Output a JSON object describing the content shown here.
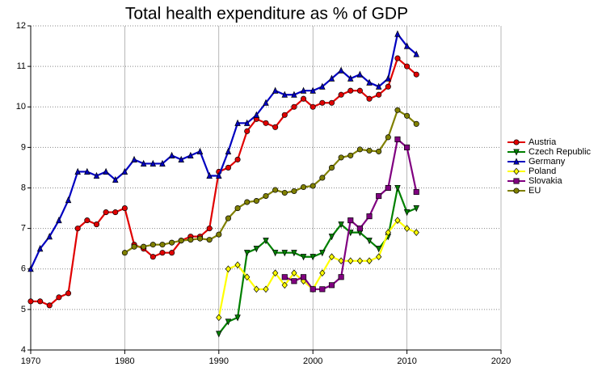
{
  "chart_data": {
    "type": "line",
    "title": "Total health expenditure as % of GDP",
    "x": [
      1970,
      1971,
      1972,
      1973,
      1974,
      1975,
      1976,
      1977,
      1978,
      1979,
      1980,
      1981,
      1982,
      1983,
      1984,
      1985,
      1986,
      1987,
      1988,
      1989,
      1990,
      1991,
      1992,
      1993,
      1994,
      1995,
      1996,
      1997,
      1998,
      1999,
      2000,
      2001,
      2002,
      2003,
      2004,
      2005,
      2006,
      2007,
      2008,
      2009,
      2010,
      2011
    ],
    "series": [
      {
        "name": "Austria",
        "color": "#e00000",
        "marker": "circle",
        "values": [
          5.2,
          5.2,
          5.1,
          5.3,
          5.4,
          7.0,
          7.2,
          7.1,
          7.4,
          7.4,
          7.5,
          6.6,
          6.5,
          6.3,
          6.4,
          6.4,
          6.7,
          6.8,
          6.8,
          7.0,
          8.4,
          8.5,
          8.7,
          9.4,
          9.7,
          9.6,
          9.5,
          9.8,
          10.0,
          10.2,
          10.0,
          10.1,
          10.1,
          10.3,
          10.4,
          10.4,
          10.2,
          10.3,
          10.5,
          11.2,
          11.0,
          10.8
        ]
      },
      {
        "name": "Czech Republic",
        "color": "#008000",
        "marker": "triangle-down",
        "values": [
          null,
          null,
          null,
          null,
          null,
          null,
          null,
          null,
          null,
          null,
          null,
          null,
          null,
          null,
          null,
          null,
          null,
          null,
          null,
          null,
          4.4,
          4.7,
          4.8,
          6.4,
          6.5,
          6.7,
          6.4,
          6.4,
          6.4,
          6.3,
          6.3,
          6.4,
          6.8,
          7.1,
          6.9,
          6.9,
          6.7,
          6.5,
          6.8,
          8.0,
          7.4,
          7.5
        ]
      },
      {
        "name": "Germany",
        "color": "#0000c0",
        "marker": "triangle-up",
        "values": [
          6.0,
          6.5,
          6.8,
          7.2,
          7.7,
          8.4,
          8.4,
          8.3,
          8.4,
          8.2,
          8.4,
          8.7,
          8.6,
          8.6,
          8.6,
          8.8,
          8.7,
          8.8,
          8.9,
          8.3,
          8.3,
          8.9,
          9.6,
          9.6,
          9.8,
          10.1,
          10.4,
          10.3,
          10.3,
          10.4,
          10.4,
          10.5,
          10.7,
          10.9,
          10.7,
          10.8,
          10.6,
          10.5,
          10.7,
          11.8,
          11.5,
          11.3
        ]
      },
      {
        "name": "Poland",
        "color": "#ffff00",
        "marker": "diamond",
        "values": [
          null,
          null,
          null,
          null,
          null,
          null,
          null,
          null,
          null,
          null,
          null,
          null,
          null,
          null,
          null,
          null,
          null,
          null,
          null,
          null,
          4.8,
          6.0,
          6.1,
          5.8,
          5.5,
          5.5,
          5.9,
          5.6,
          5.9,
          5.7,
          5.5,
          5.9,
          6.3,
          6.2,
          6.2,
          6.2,
          6.2,
          6.3,
          6.9,
          7.2,
          7.0,
          6.9
        ]
      },
      {
        "name": "Slovakia",
        "color": "#800080",
        "marker": "square",
        "values": [
          null,
          null,
          null,
          null,
          null,
          null,
          null,
          null,
          null,
          null,
          null,
          null,
          null,
          null,
          null,
          null,
          null,
          null,
          null,
          null,
          null,
          null,
          null,
          null,
          null,
          null,
          null,
          5.8,
          5.7,
          5.8,
          5.5,
          5.5,
          5.6,
          5.8,
          7.2,
          7.0,
          7.3,
          7.8,
          8.0,
          9.2,
          9.0,
          7.9
        ]
      },
      {
        "name": "EU",
        "color": "#808000",
        "marker": "circle",
        "values": [
          null,
          null,
          null,
          null,
          null,
          null,
          null,
          null,
          null,
          null,
          6.4,
          6.55,
          6.55,
          6.6,
          6.6,
          6.65,
          6.7,
          6.72,
          6.75,
          6.72,
          6.85,
          7.25,
          7.5,
          7.65,
          7.68,
          7.8,
          7.95,
          7.88,
          7.92,
          8.02,
          8.05,
          8.25,
          8.5,
          8.75,
          8.8,
          8.95,
          8.92,
          8.9,
          9.25,
          9.92,
          9.78,
          9.58
        ]
      }
    ],
    "xlim": [
      1970,
      2020
    ],
    "xticks": [
      1970,
      1980,
      1990,
      2000,
      2010,
      2020
    ],
    "ylim": [
      4,
      12
    ],
    "yticks": [
      4,
      5,
      6,
      7,
      8,
      9,
      10,
      11,
      12
    ],
    "grid": true,
    "legend": "right"
  }
}
